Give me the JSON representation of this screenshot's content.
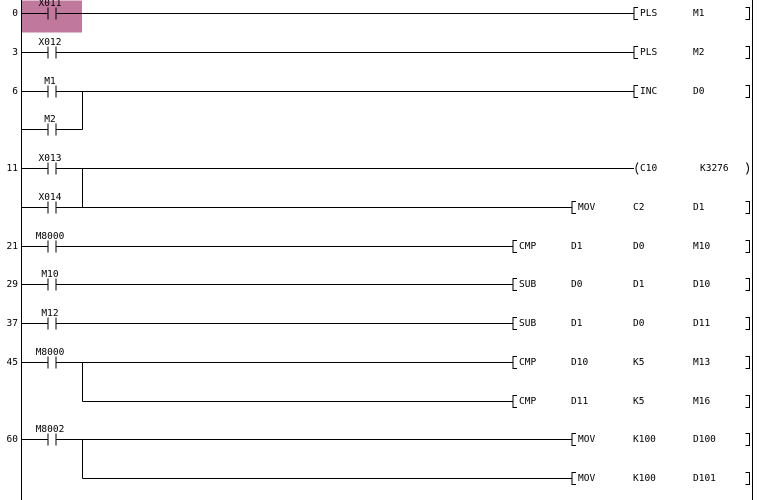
{
  "rungs": [
    {
      "step": "0",
      "rows": [
        {
          "contact": "X011",
          "selected": true,
          "instruction": [
            "PLS",
            "M1"
          ]
        }
      ]
    },
    {
      "step": "3",
      "rows": [
        {
          "contact": "X012",
          "instruction": [
            "PLS",
            "M2"
          ]
        }
      ]
    },
    {
      "step": "6",
      "rows": [
        {
          "contact": "M1",
          "instruction": [
            "INC",
            "D0"
          ]
        },
        {
          "contact": "M2"
        }
      ]
    },
    {
      "step": "11",
      "rows": [
        {
          "contact": "X013",
          "coil": [
            "C10",
            "K3276"
          ]
        },
        {
          "contact": "X014",
          "instruction": [
            "MOV",
            "C2",
            "D1"
          ]
        }
      ]
    },
    {
      "step": "21",
      "rows": [
        {
          "contact": "M8000",
          "instruction": [
            "CMP",
            "D1",
            "D0",
            "M10"
          ]
        }
      ]
    },
    {
      "step": "29",
      "rows": [
        {
          "contact": "M10",
          "instruction": [
            "SUB",
            "D0",
            "D1",
            "D10"
          ]
        }
      ]
    },
    {
      "step": "37",
      "rows": [
        {
          "contact": "M12",
          "instruction": [
            "SUB",
            "D1",
            "D0",
            "D11"
          ]
        }
      ]
    },
    {
      "step": "45",
      "rows": [
        {
          "contact": "M8000",
          "instruction": [
            "CMP",
            "D10",
            "K5",
            "M13"
          ]
        },
        {
          "instruction": [
            "CMP",
            "D11",
            "K5",
            "M16"
          ]
        }
      ]
    },
    {
      "step": "60",
      "rows": [
        {
          "contact": "M8002",
          "instruction": [
            "MOV",
            "K100",
            "D100"
          ]
        },
        {
          "instruction": [
            "MOV",
            "K100",
            "D101"
          ]
        }
      ]
    }
  ]
}
